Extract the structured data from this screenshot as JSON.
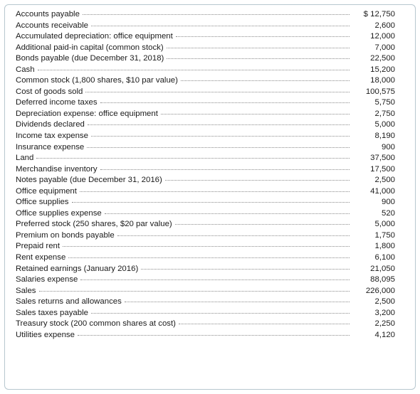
{
  "accounts": [
    {
      "label": "Accounts payable",
      "amount": "$ 12,750"
    },
    {
      "label": "Accounts receivable",
      "amount": "2,600"
    },
    {
      "label": "Accumulated depreciation: office equipment",
      "amount": "12,000"
    },
    {
      "label": "Additional paid-in capital (common stock)",
      "amount": "7,000"
    },
    {
      "label": "Bonds payable (due December 31, 2018)",
      "amount": "22,500"
    },
    {
      "label": "Cash",
      "amount": "15,200"
    },
    {
      "label": "Common stock (1,800 shares, $10 par value)",
      "amount": "18,000"
    },
    {
      "label": "Cost of goods sold",
      "amount": "100,575"
    },
    {
      "label": "Deferred income taxes",
      "amount": "5,750"
    },
    {
      "label": "Depreciation expense: office equipment",
      "amount": "2,750"
    },
    {
      "label": "Dividends declared",
      "amount": "5,000"
    },
    {
      "label": "Income tax expense",
      "amount": "8,190"
    },
    {
      "label": "Insurance expense",
      "amount": "900"
    },
    {
      "label": "Land",
      "amount": "37,500"
    },
    {
      "label": "Merchandise inventory",
      "amount": "17,500"
    },
    {
      "label": "Notes payable (due December 31, 2016)",
      "amount": "2,500"
    },
    {
      "label": "Office equipment",
      "amount": "41,000"
    },
    {
      "label": "Office supplies",
      "amount": "900"
    },
    {
      "label": "Office supplies expense",
      "amount": "520"
    },
    {
      "label": "Preferred stock (250 shares, $20 par value)",
      "amount": "5,000"
    },
    {
      "label": "Premium on bonds payable",
      "amount": "1,750"
    },
    {
      "label": "Prepaid rent",
      "amount": "1,800"
    },
    {
      "label": "Rent expense",
      "amount": "6,100"
    },
    {
      "label": "Retained earnings (January 2016)",
      "amount": "21,050"
    },
    {
      "label": "Salaries expense",
      "amount": "88,095"
    },
    {
      "label": "Sales",
      "amount": "226,000"
    },
    {
      "label": "Sales returns and allowances",
      "amount": "2,500"
    },
    {
      "label": "Sales taxes payable",
      "amount": "3,200"
    },
    {
      "label": "Treasury stock (200 common shares at cost)",
      "amount": "2,250"
    },
    {
      "label": "Utilities expense",
      "amount": "4,120"
    }
  ]
}
